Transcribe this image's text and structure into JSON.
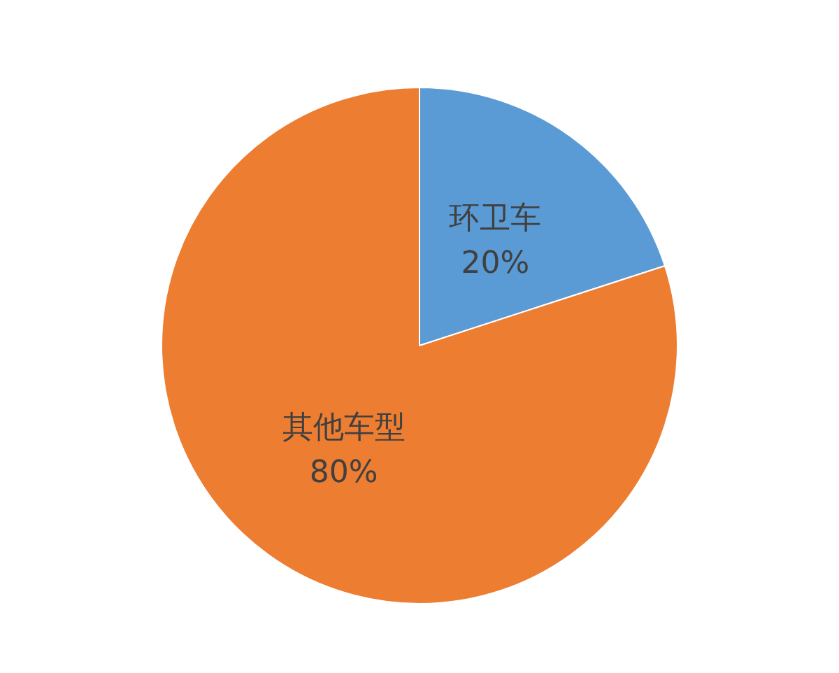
{
  "chart_data": {
    "type": "pie",
    "categories": [
      "环卫车",
      "其他车型"
    ],
    "values": [
      20,
      80
    ],
    "colors": [
      "#5b9bd5",
      "#ed7d31"
    ],
    "value_labels": [
      "20%",
      "80%"
    ],
    "legend": false
  }
}
